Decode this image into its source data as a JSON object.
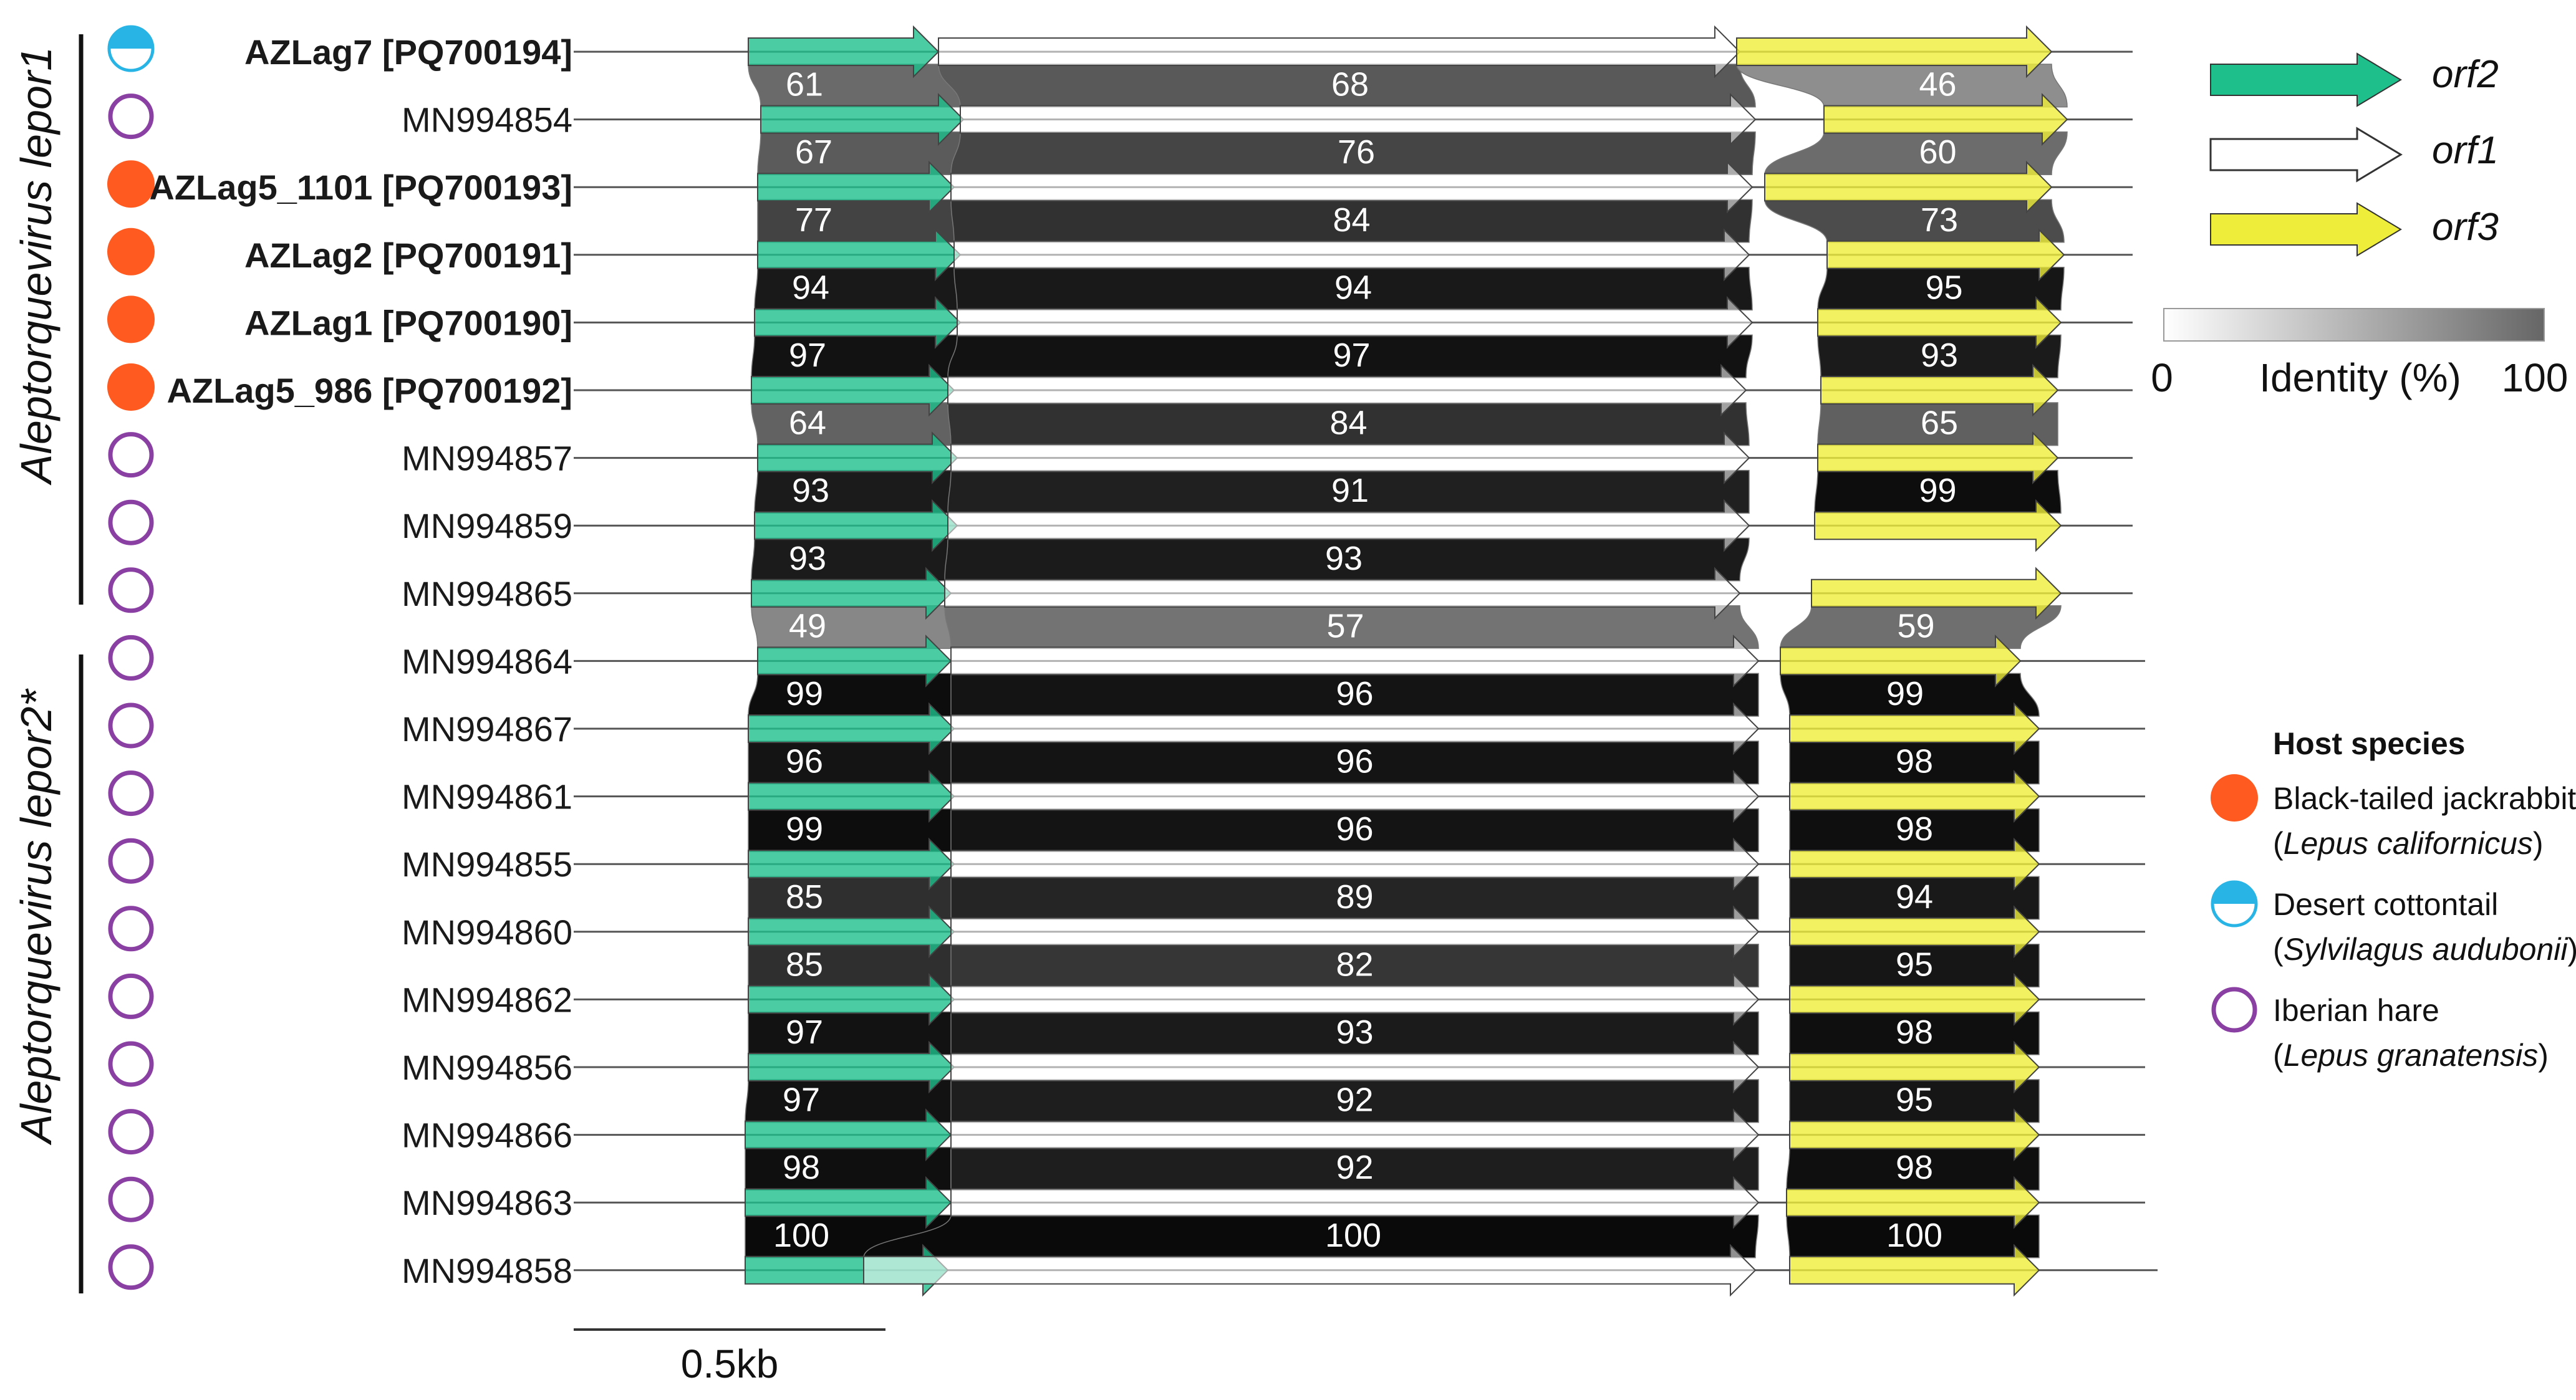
{
  "genomes": [
    {
      "label": "AZLag7 [PQ700194]",
      "bold": true,
      "host": "desert_cottontail"
    },
    {
      "label": "MN994854",
      "bold": false,
      "host": "iberian_hare"
    },
    {
      "label": "AZLag5_1101 [PQ700193]",
      "bold": true,
      "host": "black_tailed_jackrabbit"
    },
    {
      "label": "AZLag2 [PQ700191]",
      "bold": true,
      "host": "black_tailed_jackrabbit"
    },
    {
      "label": "AZLag1 [PQ700190]",
      "bold": true,
      "host": "black_tailed_jackrabbit"
    },
    {
      "label": "AZLag5_986 [PQ700192]",
      "bold": true,
      "host": "black_tailed_jackrabbit"
    },
    {
      "label": "MN994857",
      "bold": false,
      "host": "iberian_hare"
    },
    {
      "label": "MN994859",
      "bold": false,
      "host": "iberian_hare"
    },
    {
      "label": "MN994865",
      "bold": false,
      "host": "iberian_hare"
    },
    {
      "label": "MN994864",
      "bold": false,
      "host": "iberian_hare"
    },
    {
      "label": "MN994867",
      "bold": false,
      "host": "iberian_hare"
    },
    {
      "label": "MN994861",
      "bold": false,
      "host": "iberian_hare"
    },
    {
      "label": "MN994855",
      "bold": false,
      "host": "iberian_hare"
    },
    {
      "label": "MN994860",
      "bold": false,
      "host": "iberian_hare"
    },
    {
      "label": "MN994862",
      "bold": false,
      "host": "iberian_hare"
    },
    {
      "label": "MN994856",
      "bold": false,
      "host": "iberian_hare"
    },
    {
      "label": "MN994866",
      "bold": false,
      "host": "iberian_hare"
    },
    {
      "label": "MN994863",
      "bold": false,
      "host": "iberian_hare"
    },
    {
      "label": "MN994858",
      "bold": false,
      "host": "iberian_hare"
    }
  ],
  "identity": {
    "orf2": [
      61,
      67,
      77,
      94,
      97,
      64,
      93,
      93,
      49,
      99,
      96,
      99,
      85,
      85,
      97,
      97,
      98,
      100
    ],
    "orf1": [
      68,
      76,
      84,
      94,
      97,
      84,
      91,
      93,
      57,
      96,
      96,
      96,
      89,
      82,
      93,
      92,
      92,
      100
    ],
    "orf3": [
      46,
      60,
      73,
      95,
      93,
      65,
      99,
      null,
      59,
      99,
      98,
      98,
      94,
      95,
      98,
      95,
      98,
      100
    ]
  },
  "clades": [
    {
      "name": "Aleptorquevirus lepor1"
    },
    {
      "name": "Aleptorquevirus lepor2*"
    }
  ],
  "legend": {
    "orfs": [
      {
        "name": "orf2",
        "color": "#1fbf8c"
      },
      {
        "name": "orf1",
        "color": "#ffffff"
      },
      {
        "name": "orf3",
        "color": "#eeee3a"
      }
    ],
    "identity": {
      "min": "0",
      "label": "Identity (%)",
      "max": "100"
    },
    "host_title": "Host species",
    "hosts": [
      {
        "key": "black_tailed_jackrabbit",
        "common": "Black-tailed jackrabbit",
        "latin": "Lepus californicus",
        "color": "#ff5a1f"
      },
      {
        "key": "desert_cottontail",
        "common": "Desert cottontail",
        "latin": "Sylvilagus audubonii",
        "color": "#29b4e6"
      },
      {
        "key": "iberian_hare",
        "common": "Iberian hare",
        "latin": "Lepus granatensis",
        "color": "#8a3fa3"
      }
    ]
  },
  "scale_bar": {
    "label": "0.5kb"
  }
}
